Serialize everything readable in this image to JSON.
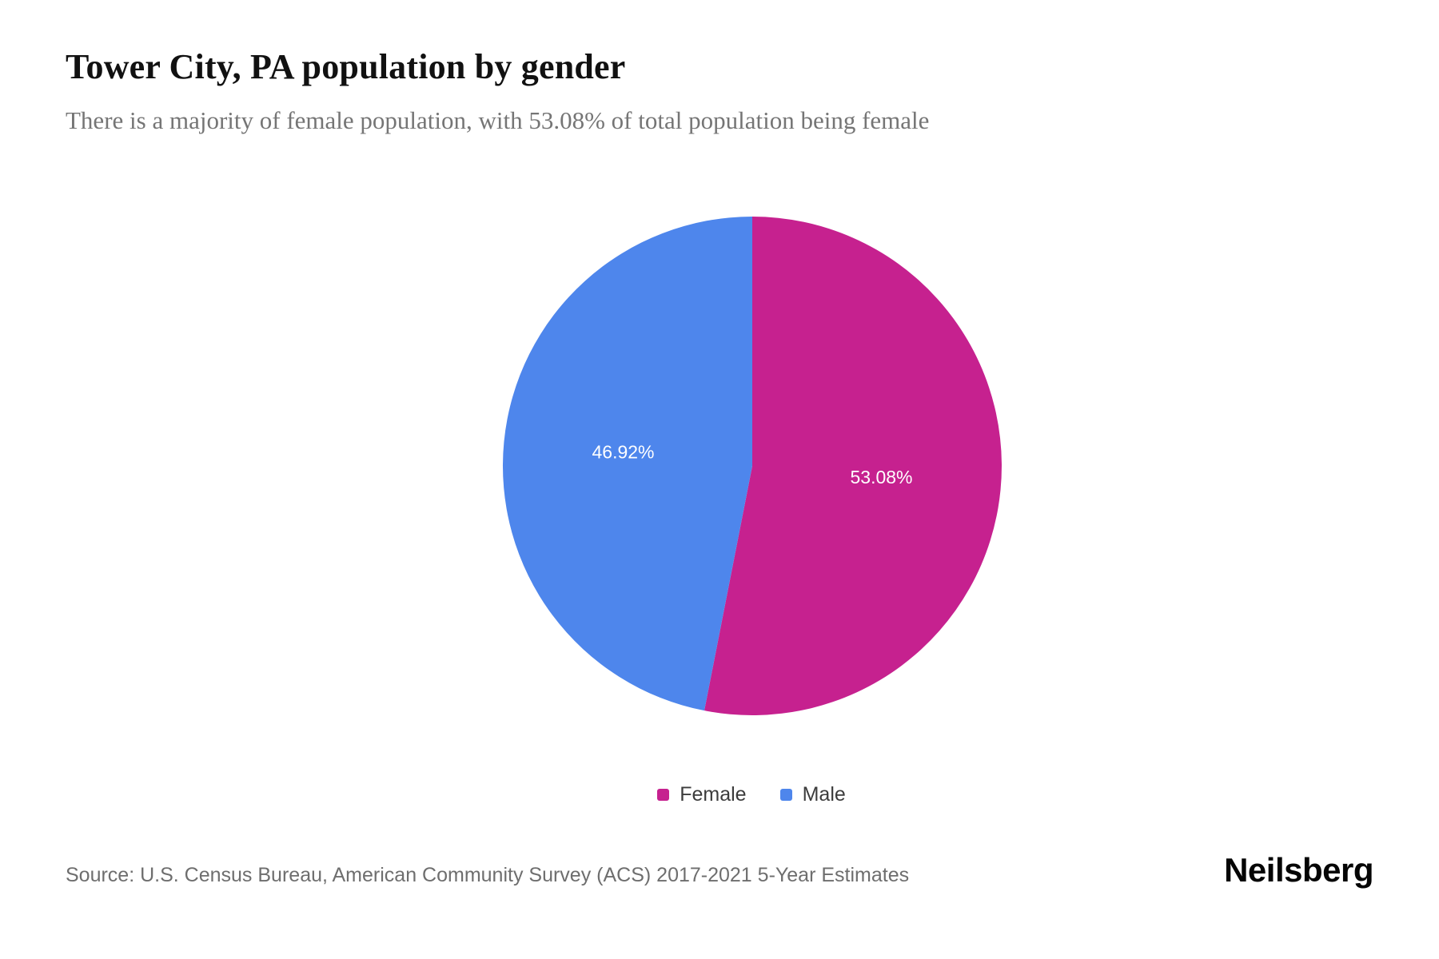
{
  "header": {
    "title": "Tower City, PA population by gender",
    "subtitle": "There is a majority of female population, with 53.08% of total population being female"
  },
  "chart_data": {
    "type": "pie",
    "title": "Tower City, PA population by gender",
    "labels": [
      "Female",
      "Male"
    ],
    "values": [
      53.08,
      46.92
    ],
    "value_labels": [
      "53.08%",
      "46.92%"
    ],
    "colors": [
      "#C6218F",
      "#4E86EC"
    ],
    "start_angle": "top",
    "direction": "clockwise",
    "legend_position": "bottom"
  },
  "legend": {
    "items": [
      {
        "label": "Female",
        "color": "#C6218F"
      },
      {
        "label": "Male",
        "color": "#4E86EC"
      }
    ]
  },
  "footer": {
    "source": "Source: U.S. Census Bureau, American Community Survey (ACS) 2017-2021 5-Year Estimates",
    "brand": "Neilsberg"
  }
}
